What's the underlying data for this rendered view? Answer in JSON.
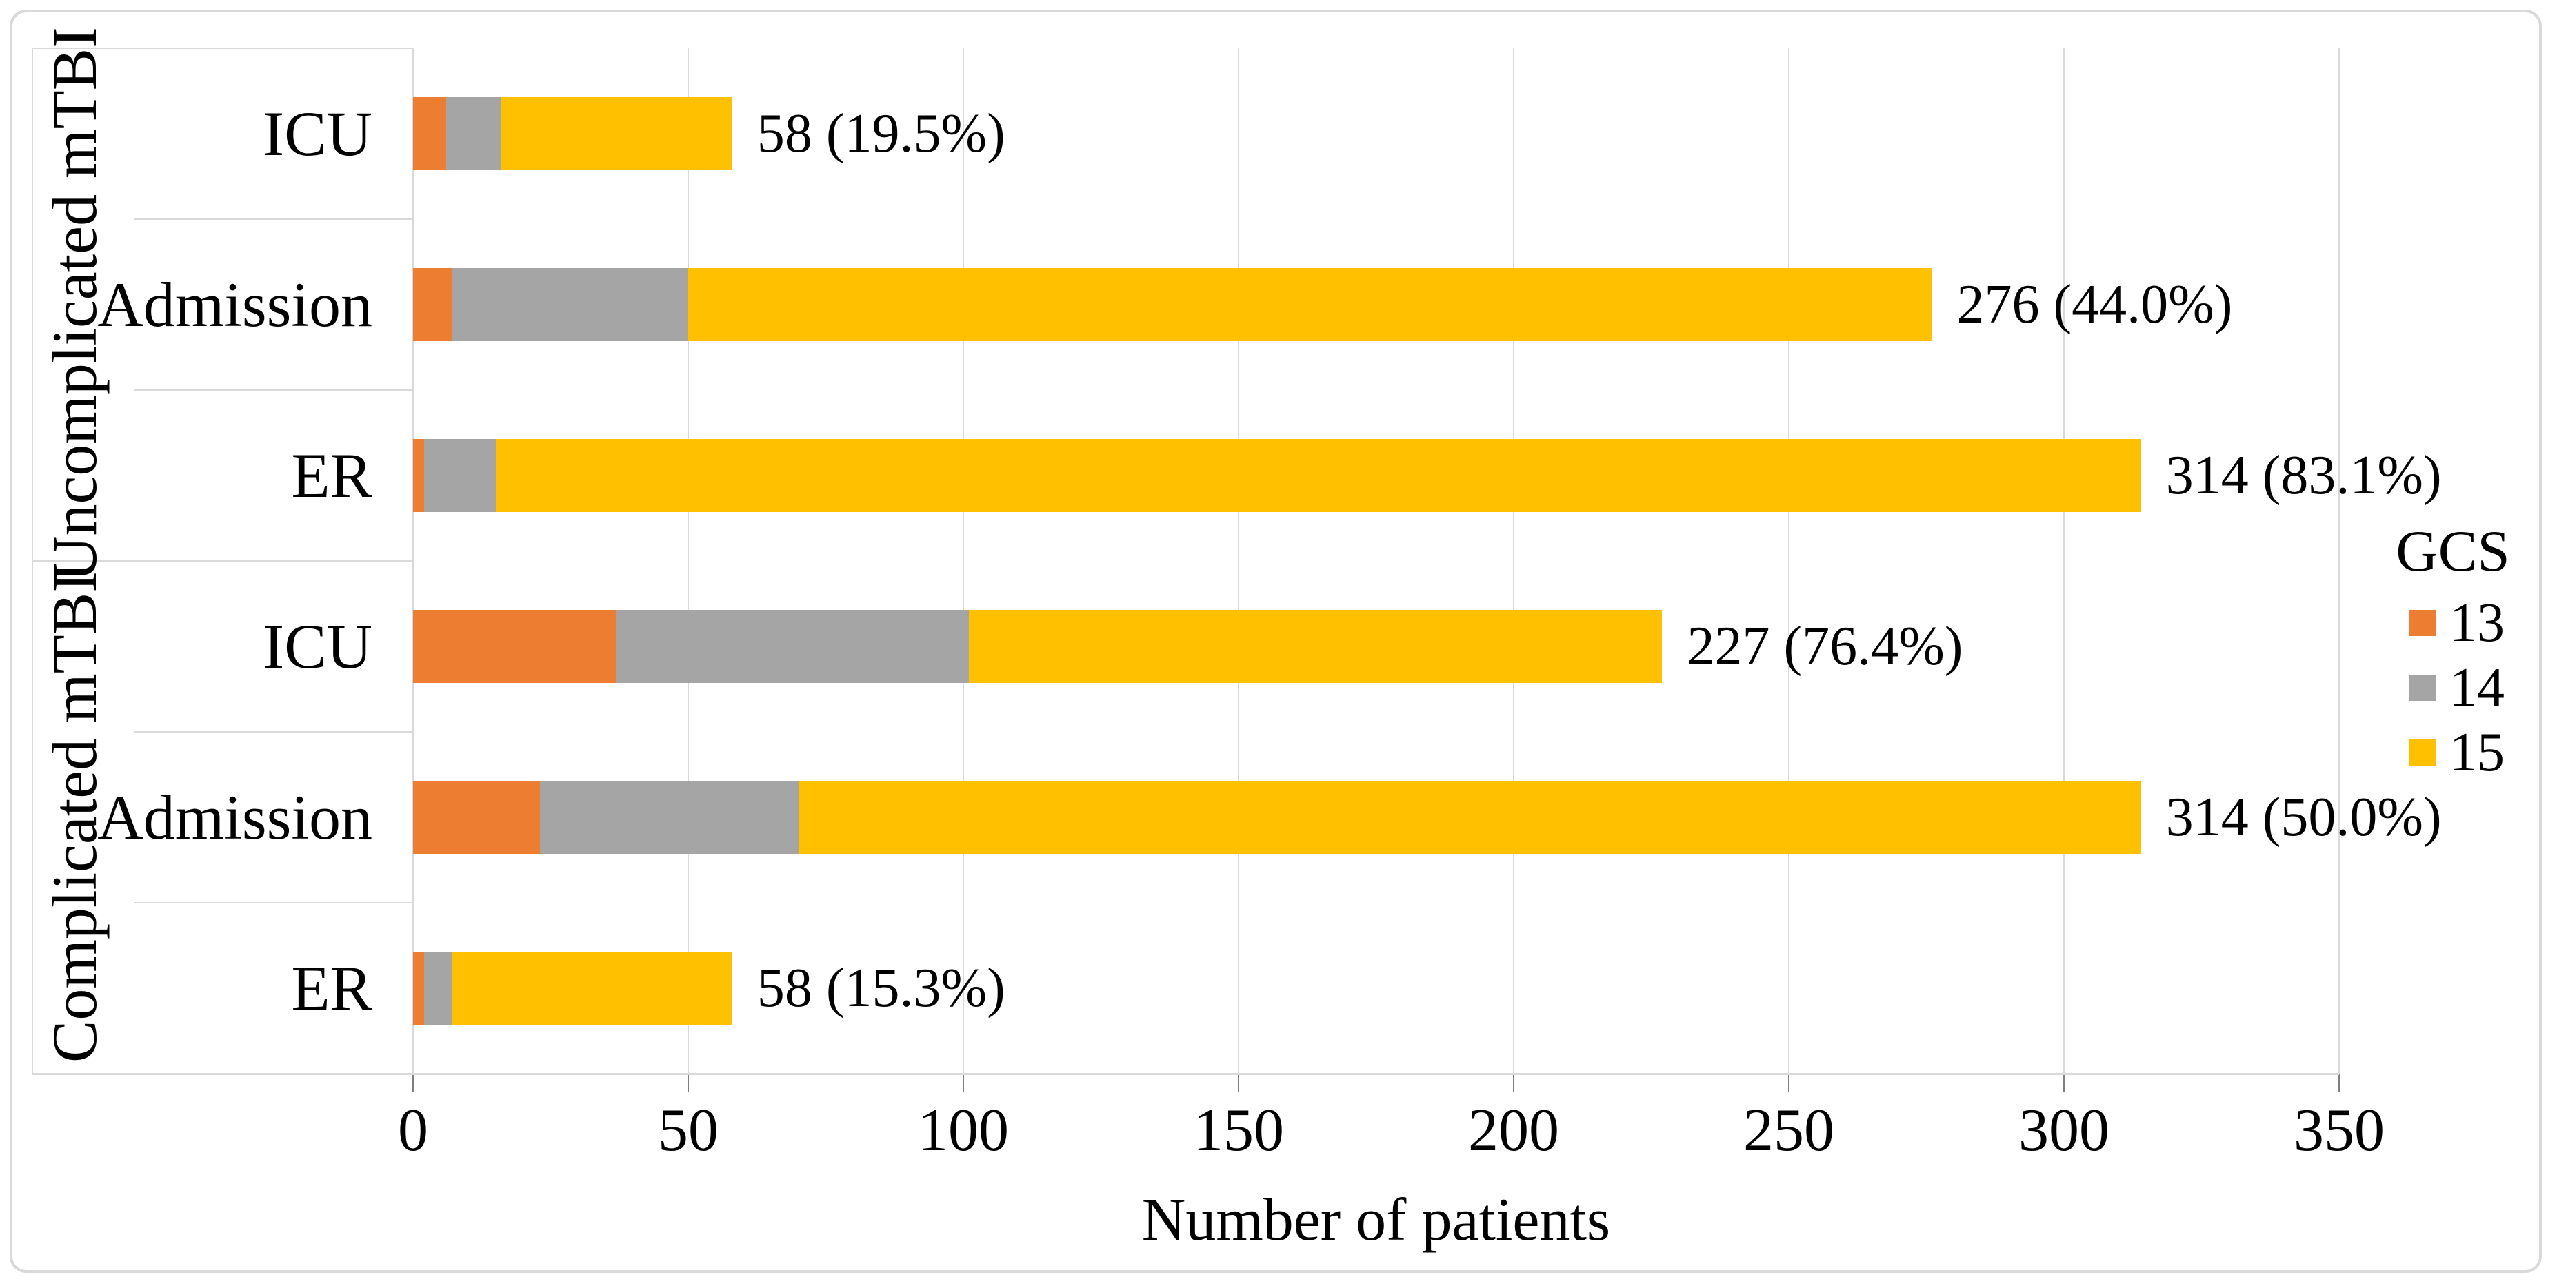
{
  "figure": {
    "background": "#FFFFFF",
    "border_color": "#D9D9D9"
  },
  "palette": {
    "grid": "#D9D9D9",
    "tick": "#7F7F7F",
    "text": "#000000"
  },
  "chart_data": {
    "type": "bar",
    "orientation": "horizontal-stacked",
    "xlabel": "Number of patients",
    "x_ticks": [
      0,
      50,
      100,
      150,
      200,
      250,
      300,
      350
    ],
    "xlim": [
      0,
      350
    ],
    "grid": true,
    "legend": {
      "title": "GCS",
      "position": "right",
      "items": [
        {
          "label": "13",
          "color": "#ED7D31"
        },
        {
          "label": "14",
          "color": "#A5A5A5"
        },
        {
          "label": "15",
          "color": "#FFC000"
        }
      ]
    },
    "series_order": [
      "13",
      "14",
      "15"
    ],
    "groups": [
      {
        "label": "Uncomplicated mTBI",
        "rows": [
          {
            "category": "ICU",
            "values": {
              "13": 6,
              "14": 10,
              "15": 42
            },
            "total": 58,
            "data_label": "58 (19.5%)"
          },
          {
            "category": "Admission",
            "values": {
              "13": 7,
              "14": 43,
              "15": 226
            },
            "total": 276,
            "data_label": "276 (44.0%)"
          },
          {
            "category": "ER",
            "values": {
              "13": 2,
              "14": 13,
              "15": 299
            },
            "total": 314,
            "data_label": "314 (83.1%)"
          }
        ]
      },
      {
        "label": "Complicated mTBI",
        "rows": [
          {
            "category": "ICU",
            "values": {
              "13": 37,
              "14": 64,
              "15": 126
            },
            "total": 227,
            "data_label": "227 (76.4%)"
          },
          {
            "category": "Admission",
            "values": {
              "13": 23,
              "14": 47,
              "15": 244
            },
            "total": 314,
            "data_label": "314 (50.0%)"
          },
          {
            "category": "ER",
            "values": {
              "13": 2,
              "14": 5,
              "15": 51
            },
            "total": 58,
            "data_label": "58 (15.3%)"
          }
        ]
      }
    ]
  }
}
